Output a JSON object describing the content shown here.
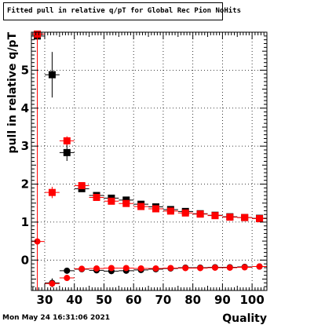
{
  "title": "Fitted pull in relative q/pT for Global Rec Pion NoHits",
  "timestamp": "Mon May 24 16:31:06 2021",
  "chart_data": {
    "type": "scatter",
    "title": "Fitted pull in relative q/pT for Global Rec Pion NoHits",
    "xlabel": "Quality",
    "ylabel": "pull in relative q/pT",
    "xlim": [
      25.5,
      105
    ],
    "ylim": [
      -0.8,
      6.0
    ],
    "xticks": [
      30,
      40,
      50,
      60,
      70,
      80,
      90,
      100
    ],
    "yticks": [
      0,
      1,
      2,
      3,
      4,
      5
    ],
    "grid": true,
    "series": [
      {
        "marker": "square",
        "color": "#000000",
        "x": [
          27.5,
          32.5,
          37.5,
          42.5,
          47.5,
          52.5,
          57.5,
          62.5,
          67.5,
          72.5,
          77.5,
          82.5,
          87.5,
          92.5,
          97.5,
          102.5
        ],
        "y": [
          5.9,
          4.88,
          2.83,
          1.88,
          1.7,
          1.63,
          1.58,
          1.47,
          1.4,
          1.33,
          1.28,
          1.22,
          1.18,
          1.14,
          1.12,
          1.1
        ],
        "err": [
          0.0,
          0.6,
          0.22,
          0.06,
          0.05,
          0.04,
          0.04,
          0.03,
          0.03,
          0.03,
          0.03,
          0.03,
          0.03,
          0.03,
          0.03,
          0.03
        ]
      },
      {
        "marker": "square",
        "color": "#ff0000",
        "x": [
          27.5,
          32.5,
          37.5,
          42.5,
          47.5,
          52.5,
          57.5,
          62.5,
          67.5,
          72.5,
          77.5,
          82.5,
          87.5,
          92.5,
          97.5,
          102.5
        ],
        "y": [
          5.95,
          1.78,
          3.14,
          1.96,
          1.65,
          1.55,
          1.49,
          1.41,
          1.35,
          1.29,
          1.24,
          1.21,
          1.17,
          1.13,
          1.12,
          1.09
        ],
        "err": [
          0.0,
          0.15,
          0.12,
          0.06,
          0.05,
          0.04,
          0.04,
          0.03,
          0.03,
          0.03,
          0.03,
          0.03,
          0.03,
          0.03,
          0.03,
          0.03
        ]
      },
      {
        "marker": "circle",
        "color": "#000000",
        "x": [
          32.5,
          37.5,
          42.5,
          47.5,
          52.5,
          57.5,
          62.5,
          67.5,
          72.5,
          77.5,
          82.5,
          87.5,
          92.5,
          97.5,
          102.5
        ],
        "y": [
          -0.6,
          -0.28,
          -0.24,
          -0.27,
          -0.29,
          -0.28,
          -0.26,
          -0.24,
          -0.22,
          -0.2,
          -0.2,
          -0.19,
          -0.19,
          -0.18,
          -0.17
        ],
        "err": [
          0.12,
          0.08,
          0.03,
          0.03,
          0.02,
          0.02,
          0.02,
          0.02,
          0.02,
          0.02,
          0.02,
          0.02,
          0.02,
          0.02,
          0.02
        ]
      },
      {
        "marker": "circle",
        "color": "#ff0000",
        "x": [
          27.5,
          32.5,
          37.5,
          42.5,
          47.5,
          52.5,
          57.5,
          62.5,
          67.5,
          72.5,
          77.5,
          82.5,
          87.5,
          92.5,
          97.5,
          102.5
        ],
        "y": [
          0.49,
          -0.62,
          -0.47,
          -0.23,
          -0.22,
          -0.21,
          -0.21,
          -0.22,
          -0.22,
          -0.21,
          -0.21,
          -0.21,
          -0.2,
          -0.2,
          -0.19,
          -0.17
        ],
        "err": [
          0.0,
          0.08,
          0.06,
          0.02,
          0.02,
          0.02,
          0.02,
          0.02,
          0.02,
          0.02,
          0.02,
          0.02,
          0.02,
          0.02,
          0.02,
          0.02
        ]
      }
    ]
  }
}
